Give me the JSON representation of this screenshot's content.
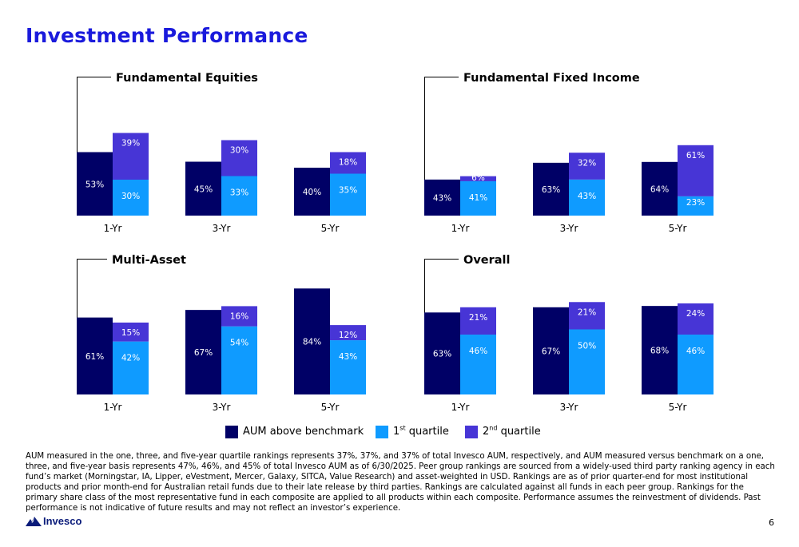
{
  "page": {
    "title": "Investment Performance",
    "page_number": "6"
  },
  "colors": {
    "aum": "#000066",
    "q1": "#0f9bff",
    "q2": "#4735d6",
    "title": "#1a1adc"
  },
  "legend": {
    "items": [
      {
        "label": "AUM above benchmark",
        "sup": "",
        "rest": "",
        "color": "#000066"
      },
      {
        "label": "1",
        "sup": "st",
        "rest": " quartile",
        "color": "#0f9bff"
      },
      {
        "label": "2",
        "sup": "nd",
        "rest": " quartile",
        "color": "#4735d6"
      }
    ]
  },
  "chart_data": [
    {
      "type": "bar",
      "title": "Fundamental Equities",
      "categories": [
        "1-Yr",
        "3-Yr",
        "5-Yr"
      ],
      "series": [
        {
          "name": "AUM above benchmark",
          "values": [
            53,
            45,
            40
          ]
        },
        {
          "name": "1st quartile",
          "values": [
            30,
            33,
            35
          ]
        },
        {
          "name": "2nd quartile",
          "values": [
            39,
            30,
            18
          ]
        }
      ],
      "labels": {
        "aum": [
          "53%",
          "45%",
          "40%"
        ],
        "q1": [
          "30%",
          "33%",
          "35%"
        ],
        "q2": [
          "39%",
          "30%",
          "18%"
        ]
      },
      "ylim": [
        0,
        100
      ]
    },
    {
      "type": "bar",
      "title": "Fundamental Fixed Income",
      "categories": [
        "1-Yr",
        "3-Yr",
        "5-Yr"
      ],
      "series": [
        {
          "name": "AUM above benchmark",
          "values": [
            43,
            63,
            64
          ]
        },
        {
          "name": "1st quartile",
          "values": [
            41,
            43,
            23
          ]
        },
        {
          "name": "2nd quartile",
          "values": [
            6,
            32,
            61
          ]
        }
      ],
      "labels": {
        "aum": [
          "43%",
          "63%",
          "64%"
        ],
        "q1": [
          "41%",
          "43%",
          "23%"
        ],
        "q2": [
          "6%",
          "32%",
          "61%"
        ]
      },
      "ylim": [
        0,
        100
      ]
    },
    {
      "type": "bar",
      "title": "Multi-Asset",
      "categories": [
        "1-Yr",
        "3-Yr",
        "5-Yr"
      ],
      "series": [
        {
          "name": "AUM above benchmark",
          "values": [
            61,
            67,
            84
          ]
        },
        {
          "name": "1st quartile",
          "values": [
            42,
            54,
            43
          ]
        },
        {
          "name": "2nd quartile",
          "values": [
            15,
            16,
            12
          ]
        }
      ],
      "labels": {
        "aum": [
          "61%",
          "67%",
          "84%"
        ],
        "q1": [
          "42%",
          "54%",
          "43%"
        ],
        "q2": [
          "15%",
          "16%",
          "12%"
        ]
      },
      "ylim": [
        0,
        100
      ]
    },
    {
      "type": "bar",
      "title": "Overall",
      "categories": [
        "1-Yr",
        "3-Yr",
        "5-Yr"
      ],
      "series": [
        {
          "name": "AUM above benchmark",
          "values": [
            63,
            67,
            68
          ]
        },
        {
          "name": "1st quartile",
          "values": [
            46,
            50,
            46
          ]
        },
        {
          "name": "2nd quartile",
          "values": [
            21,
            21,
            24
          ]
        }
      ],
      "labels": {
        "aum": [
          "63%",
          "67%",
          "68%"
        ],
        "q1": [
          "46%",
          "50%",
          "46%"
        ],
        "q2": [
          "21%",
          "21%",
          "24%"
        ]
      },
      "ylim": [
        0,
        100
      ]
    }
  ],
  "footnote": "AUM measured in the one, three, and five-year quartile rankings represents 37%, 37%, and 37% of total Invesco AUM, respectively, and AUM measured versus benchmark on a one, three, and five-year basis represents 47%, 46%, and 45% of total Invesco AUM as of 6/30/2025. Peer group rankings are sourced from a widely-used third party ranking agency in each fund’s market (Morningstar, IA, Lipper, eVestment, Mercer, Galaxy, SITCA, Value Research) and asset-weighted in USD. Rankings are as of prior quarter-end for most institutional products and prior month-end for Australian retail funds due to their late release by third parties. Rankings are calculated against all funds in each peer group. Rankings for the primary share class of the most representative fund in each composite are applied to all products within each composite. Performance assumes the reinvestment of dividends. Past performance is not indicative of future results and may not reflect an investor’s experience.",
  "logo": {
    "text": "Invesco",
    "icon": "invesco-mountain-icon"
  }
}
